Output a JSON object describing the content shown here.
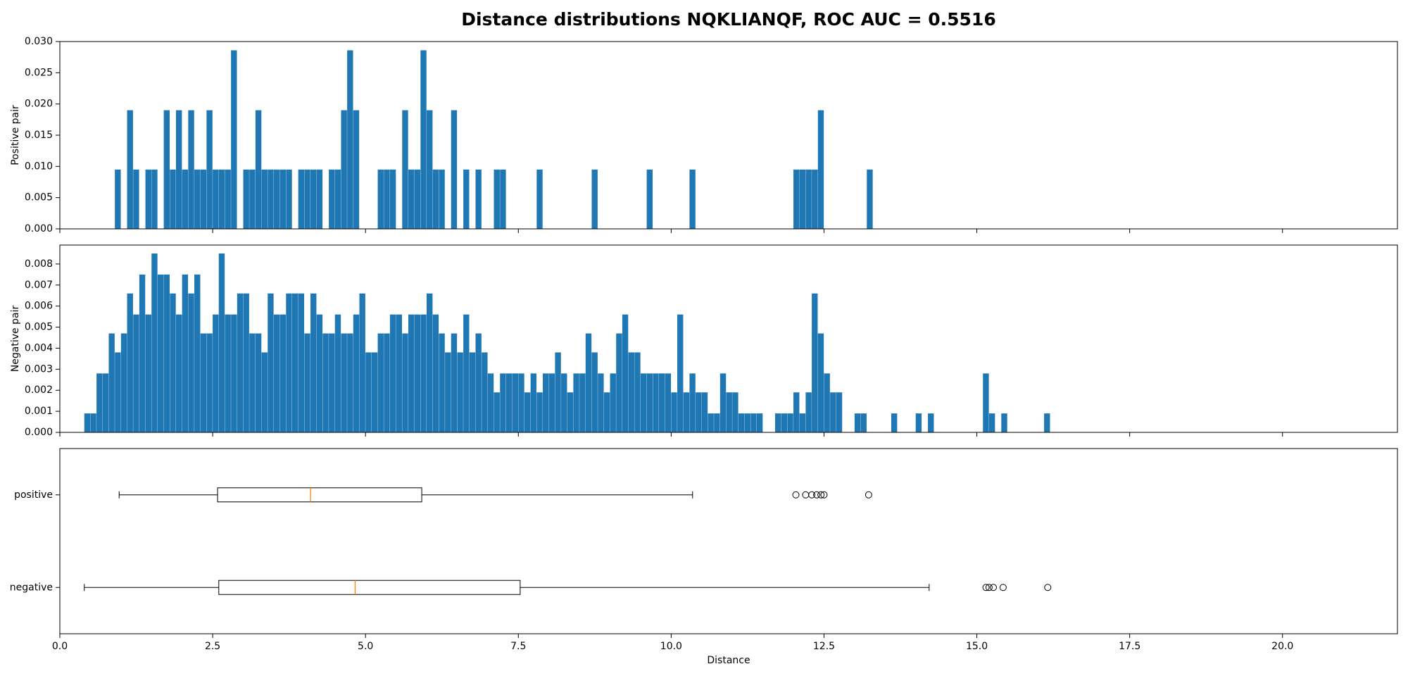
{
  "title": "Distance distributions NQKLIANQF, ROC AUC = 0.5516",
  "chart_data": [
    {
      "type": "histogram",
      "ylabel": "Positive pair",
      "color": "#1f77b4",
      "xlim": [
        0,
        21.88
      ],
      "xticks": [
        0,
        2.5,
        5,
        7.5,
        10,
        12.5,
        15,
        17.5,
        20
      ],
      "ylim": [
        0,
        0.03
      ],
      "yticks": [
        {
          "value": 0,
          "label": "0.000"
        },
        {
          "value": 0.005,
          "label": "0.005"
        },
        {
          "value": 0.01,
          "label": "0.010"
        },
        {
          "value": 0.015,
          "label": "0.015"
        },
        {
          "value": 0.02,
          "label": "0.020"
        },
        {
          "value": 0.025,
          "label": "0.025"
        },
        {
          "value": 0.03,
          "label": "0.030"
        }
      ],
      "bins": [
        0.9,
        1.0,
        1.1,
        1.2,
        1.3,
        1.4,
        1.5,
        1.6,
        1.7,
        1.8,
        1.9,
        2.0,
        2.1,
        2.2,
        2.3,
        2.4,
        2.5,
        2.6,
        2.7,
        2.8,
        2.9,
        3.0,
        3.1,
        3.2,
        3.3,
        3.4,
        3.5,
        3.6,
        3.7,
        3.8,
        3.9,
        4.0,
        4.1,
        4.2,
        4.3,
        4.4,
        4.5,
        4.6,
        4.7,
        4.8,
        4.9,
        5.0,
        5.1,
        5.2,
        5.3,
        5.4,
        5.5,
        5.6,
        5.7,
        5.8,
        5.9,
        6.0,
        6.1,
        6.2,
        6.3,
        6.4,
        6.5,
        6.6,
        6.7,
        6.8,
        6.9,
        7.0,
        7.1,
        7.2,
        7.3,
        7.4,
        7.5,
        7.6,
        7.7,
        7.8,
        7.9,
        8.0,
        8.1,
        8.2,
        8.3,
        8.4,
        8.5,
        8.6,
        8.7,
        8.8,
        8.9,
        9.0,
        9.1,
        9.2,
        9.3,
        9.4,
        9.5,
        9.6,
        9.7,
        9.8,
        9.9,
        10.0,
        10.1,
        10.2,
        10.3,
        10.4,
        10.5,
        10.6,
        10.7,
        10.8,
        10.9,
        11.0,
        11.1,
        11.2,
        11.3,
        11.4,
        11.5,
        11.6,
        11.7,
        11.8,
        11.9,
        12.0,
        12.1,
        12.2,
        12.3,
        12.4,
        12.5,
        12.6,
        12.7,
        12.8,
        12.9,
        13.0,
        13.1,
        13.2,
        13.3
      ],
      "values": [
        0.0095,
        0,
        0.019,
        0.0095,
        0,
        0.0095,
        0.0095,
        0,
        0.019,
        0.0095,
        0.019,
        0.0095,
        0.019,
        0.0095,
        0.0095,
        0.019,
        0.0095,
        0.0095,
        0.0095,
        0.0286,
        0,
        0.0095,
        0.0095,
        0.019,
        0.0095,
        0.0095,
        0.0095,
        0.0095,
        0.0095,
        0,
        0.0095,
        0.0095,
        0.0095,
        0.0095,
        0,
        0.0095,
        0.0095,
        0.019,
        0.0286,
        0.019,
        0,
        0,
        0,
        0.0095,
        0.0095,
        0.0095,
        0,
        0.019,
        0.0095,
        0.0095,
        0.0286,
        0.019,
        0.0095,
        0.0095,
        0,
        0.019,
        0,
        0.0095,
        0,
        0.0095,
        0,
        0,
        0.0095,
        0.0095,
        0,
        0,
        0,
        0,
        0,
        0.0095,
        0,
        0,
        0,
        0,
        0,
        0,
        0,
        0,
        0.0095,
        0,
        0,
        0,
        0,
        0,
        0,
        0,
        0,
        0.0095,
        0,
        0,
        0,
        0,
        0,
        0,
        0.0095,
        0,
        0,
        0,
        0,
        0,
        0,
        0,
        0,
        0,
        0,
        0,
        0,
        0,
        0,
        0,
        0,
        0.0095,
        0.0095,
        0.0095,
        0.0095,
        0.019,
        0,
        0,
        0,
        0,
        0,
        0,
        0,
        0.0095
      ]
    },
    {
      "type": "histogram",
      "ylabel": "Negative pair",
      "color": "#1f77b4",
      "xlim": [
        0,
        21.88
      ],
      "xticks": [
        0,
        2.5,
        5,
        7.5,
        10,
        12.5,
        15,
        17.5,
        20
      ],
      "ylim": [
        0,
        0.0089
      ],
      "yticks": [
        {
          "value": 0,
          "label": "0.000"
        },
        {
          "value": 0.001,
          "label": "0.001"
        },
        {
          "value": 0.002,
          "label": "0.002"
        },
        {
          "value": 0.003,
          "label": "0.003"
        },
        {
          "value": 0.004,
          "label": "0.004"
        },
        {
          "value": 0.005,
          "label": "0.005"
        },
        {
          "value": 0.006,
          "label": "0.006"
        },
        {
          "value": 0.007,
          "label": "0.007"
        },
        {
          "value": 0.008,
          "label": "0.008"
        }
      ],
      "bins": [
        0.4,
        0.5,
        0.6,
        0.7,
        0.8,
        0.9,
        1.0,
        1.1,
        1.2,
        1.3,
        1.4,
        1.5,
        1.6,
        1.7,
        1.8,
        1.9,
        2.0,
        2.1,
        2.2,
        2.3,
        2.4,
        2.5,
        2.6,
        2.7,
        2.8,
        2.9,
        3.0,
        3.1,
        3.2,
        3.3,
        3.4,
        3.5,
        3.6,
        3.7,
        3.8,
        3.9,
        4.0,
        4.1,
        4.2,
        4.3,
        4.4,
        4.5,
        4.6,
        4.7,
        4.8,
        4.9,
        5.0,
        5.1,
        5.2,
        5.3,
        5.4,
        5.5,
        5.6,
        5.7,
        5.8,
        5.9,
        6.0,
        6.1,
        6.2,
        6.3,
        6.4,
        6.5,
        6.6,
        6.7,
        6.8,
        6.9,
        7.0,
        7.1,
        7.2,
        7.3,
        7.4,
        7.5,
        7.6,
        7.7,
        7.8,
        7.9,
        8.0,
        8.1,
        8.2,
        8.3,
        8.4,
        8.5,
        8.6,
        8.7,
        8.8,
        8.9,
        9.0,
        9.1,
        9.2,
        9.3,
        9.4,
        9.5,
        9.6,
        9.7,
        9.8,
        9.9,
        10.0,
        10.1,
        10.2,
        10.3,
        10.4,
        10.5,
        10.6,
        10.7,
        10.8,
        10.9,
        11.0,
        11.1,
        11.2,
        11.3,
        11.4,
        11.5,
        11.6,
        11.7,
        11.8,
        11.9,
        12.0,
        12.1,
        12.2,
        12.3,
        12.4,
        12.5,
        12.6,
        12.7,
        12.8,
        12.9,
        13.0,
        13.1,
        13.2,
        13.3,
        13.4,
        13.5,
        13.6,
        13.7,
        13.8,
        13.9,
        14.0,
        14.1,
        14.2,
        14.3,
        14.4,
        14.5,
        14.6,
        14.7,
        14.8,
        14.9,
        15.0,
        15.1,
        15.2,
        15.3,
        15.4,
        15.5,
        15.6,
        15.7,
        15.8,
        15.9,
        16.0,
        16.1,
        16.2
      ],
      "values": [
        0.0009,
        0.0009,
        0.0028,
        0.0028,
        0.0047,
        0.0038,
        0.0047,
        0.0066,
        0.0056,
        0.0075,
        0.0056,
        0.0085,
        0.0075,
        0.0075,
        0.0066,
        0.0056,
        0.0075,
        0.0066,
        0.0075,
        0.0047,
        0.0047,
        0.0056,
        0.0085,
        0.0056,
        0.0056,
        0.0066,
        0.0066,
        0.0047,
        0.0047,
        0.0038,
        0.0066,
        0.0056,
        0.0056,
        0.0066,
        0.0066,
        0.0066,
        0.0047,
        0.0066,
        0.0056,
        0.0047,
        0.0047,
        0.0056,
        0.0047,
        0.0047,
        0.0056,
        0.0066,
        0.0038,
        0.0038,
        0.0047,
        0.0047,
        0.0056,
        0.0056,
        0.0047,
        0.0056,
        0.0056,
        0.0056,
        0.0066,
        0.0056,
        0.0047,
        0.0038,
        0.0047,
        0.0038,
        0.0056,
        0.0038,
        0.0047,
        0.0038,
        0.0028,
        0.0019,
        0.0028,
        0.0028,
        0.0028,
        0.0028,
        0.0019,
        0.0028,
        0.0019,
        0.0028,
        0.0028,
        0.0038,
        0.0028,
        0.0019,
        0.0028,
        0.0028,
        0.0047,
        0.0038,
        0.0028,
        0.0019,
        0.0028,
        0.0047,
        0.0056,
        0.0038,
        0.0038,
        0.0028,
        0.0028,
        0.0028,
        0.0028,
        0.0028,
        0.0019,
        0.0056,
        0.0019,
        0.0028,
        0.0019,
        0.0019,
        0.0009,
        0.0009,
        0.0028,
        0.0019,
        0.0019,
        0.0009,
        0.0009,
        0.0009,
        0.0009,
        0,
        0,
        0.0009,
        0.0009,
        0.0009,
        0.0019,
        0.0009,
        0.0019,
        0.0066,
        0.0047,
        0.0028,
        0.0019,
        0.0019,
        0,
        0,
        0.0009,
        0.0009,
        0,
        0,
        0,
        0,
        0.0009,
        0,
        0,
        0,
        0.0009,
        0,
        0.0009,
        0,
        0,
        0,
        0,
        0,
        0,
        0,
        0,
        0.0028,
        0.0009,
        0,
        0.0009,
        0,
        0,
        0,
        0,
        0,
        0,
        0.0009
      ]
    },
    {
      "type": "box",
      "xlabel": "Distance",
      "median_color": "#ff7f0e",
      "xlim": [
        0,
        21.88
      ],
      "xticks": [
        {
          "value": 0,
          "label": "0.0"
        },
        2.5,
        {
          "value": 5,
          "label": "5.0"
        },
        7.5,
        {
          "value": 10,
          "label": "10.0"
        },
        12.5,
        {
          "value": 15,
          "label": "15.0"
        },
        17.5,
        {
          "value": 20,
          "label": "20.0"
        }
      ],
      "categories": [
        "positive",
        "negative"
      ],
      "boxes": [
        {
          "whislo": 0.97,
          "q1": 2.58,
          "med": 4.1,
          "q3": 5.92,
          "whishi": 10.35,
          "fliers": [
            12.04,
            12.2,
            12.3,
            12.38,
            12.45,
            12.5,
            13.23
          ]
        },
        {
          "whislo": 0.4,
          "q1": 2.6,
          "med": 4.83,
          "q3": 7.53,
          "whishi": 14.22,
          "fliers": [
            15.15,
            15.2,
            15.27,
            15.43,
            16.16
          ]
        }
      ]
    }
  ]
}
